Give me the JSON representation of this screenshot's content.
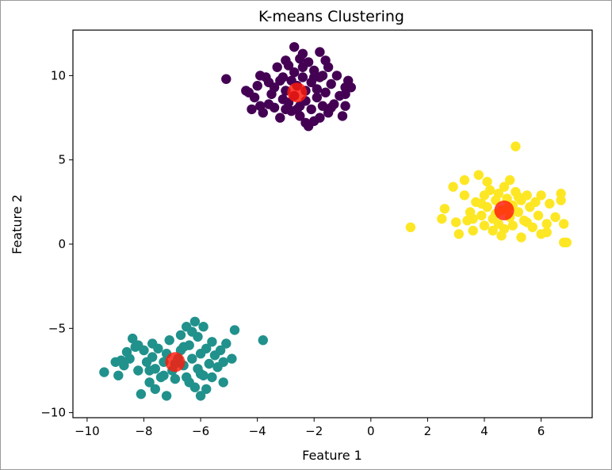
{
  "chart_data": {
    "type": "scatter",
    "title": "K-means Clustering",
    "xlabel": "Feature 1",
    "ylabel": "Feature 2",
    "xlim": [
      -10.5,
      7.8
    ],
    "ylim": [
      -10.3,
      12.7
    ],
    "xticks": [
      -10,
      -8,
      -6,
      -4,
      -2,
      0,
      2,
      4,
      6
    ],
    "yticks": [
      -10,
      -5,
      0,
      5,
      10
    ],
    "grid": false,
    "legend": "none",
    "colors": {
      "cluster_0": "#440154",
      "cluster_1": "#21918c",
      "cluster_2": "#fde725",
      "centroid": "#ff1a0a"
    },
    "series": [
      {
        "cluster": "cluster_0",
        "points": [
          [
            -5.1,
            9.8
          ],
          [
            -4.3,
            9.0
          ],
          [
            -4.1,
            8.7
          ],
          [
            -4.0,
            9.4
          ],
          [
            -3.9,
            8.2
          ],
          [
            -3.8,
            7.8
          ],
          [
            -3.6,
            9.6
          ],
          [
            -3.5,
            8.9
          ],
          [
            -3.4,
            9.3
          ],
          [
            -3.4,
            8.1
          ],
          [
            -3.3,
            10.5
          ],
          [
            -3.2,
            7.5
          ],
          [
            -3.1,
            9.9
          ],
          [
            -3.1,
            8.6
          ],
          [
            -3.0,
            10.9
          ],
          [
            -3.0,
            9.1
          ],
          [
            -2.9,
            8.4
          ],
          [
            -2.8,
            9.7
          ],
          [
            -2.8,
            7.9
          ],
          [
            -2.7,
            11.7
          ],
          [
            -2.7,
            10.2
          ],
          [
            -2.7,
            8.8
          ],
          [
            -2.6,
            9.4
          ],
          [
            -2.5,
            8.2
          ],
          [
            -2.5,
            7.6
          ],
          [
            -2.4,
            11.3
          ],
          [
            -2.4,
            10.5
          ],
          [
            -2.4,
            9.9
          ],
          [
            -2.3,
            9.1
          ],
          [
            -2.3,
            8.5
          ],
          [
            -2.2,
            10.8
          ],
          [
            -2.2,
            7.0
          ],
          [
            -2.1,
            9.6
          ],
          [
            -2.1,
            8.0
          ],
          [
            -2.0,
            7.3
          ],
          [
            -2.0,
            10.3
          ],
          [
            -1.9,
            9.2
          ],
          [
            -1.9,
            8.7
          ],
          [
            -1.8,
            11.4
          ],
          [
            -1.8,
            7.5
          ],
          [
            -1.7,
            10.0
          ],
          [
            -1.7,
            8.2
          ],
          [
            -1.6,
            10.9
          ],
          [
            -1.6,
            9.0
          ],
          [
            -1.5,
            7.8
          ],
          [
            -1.5,
            10.5
          ],
          [
            -1.4,
            9.5
          ],
          [
            -1.3,
            8.3
          ],
          [
            -1.2,
            10.0
          ],
          [
            -1.1,
            8.8
          ],
          [
            -1.0,
            7.6
          ],
          [
            -0.9,
            8.9
          ],
          [
            -0.8,
            9.7
          ],
          [
            -0.7,
            9.3
          ],
          [
            -0.9,
            8.2
          ],
          [
            -3.6,
            8.3
          ],
          [
            -3.0,
            8.0
          ],
          [
            -2.0,
            9.9
          ],
          [
            -4.4,
            9.1
          ],
          [
            -3.7,
            9.9
          ],
          [
            -3.2,
            9.7
          ],
          [
            -2.9,
            10.6
          ],
          [
            -2.6,
            8.0
          ],
          [
            -1.8,
            9.9
          ],
          [
            -2.3,
            7.2
          ],
          [
            -3.9,
            10.0
          ],
          [
            -1.4,
            8.1
          ],
          [
            -0.9,
            9.3
          ],
          [
            -4.2,
            8.0
          ],
          [
            -2.5,
            11.0
          ]
        ]
      },
      {
        "cluster": "cluster_1",
        "points": [
          [
            -9.4,
            -7.6
          ],
          [
            -9.0,
            -7.0
          ],
          [
            -8.9,
            -7.8
          ],
          [
            -8.7,
            -7.2
          ],
          [
            -8.6,
            -6.4
          ],
          [
            -8.5,
            -6.8
          ],
          [
            -8.4,
            -5.6
          ],
          [
            -8.3,
            -6.1
          ],
          [
            -8.2,
            -7.5
          ],
          [
            -8.1,
            -8.9
          ],
          [
            -8.0,
            -6.3
          ],
          [
            -7.9,
            -7.0
          ],
          [
            -7.8,
            -8.2
          ],
          [
            -7.7,
            -5.9
          ],
          [
            -7.7,
            -6.7
          ],
          [
            -7.6,
            -7.4
          ],
          [
            -7.6,
            -8.6
          ],
          [
            -7.5,
            -6.2
          ],
          [
            -7.4,
            -7.9
          ],
          [
            -7.3,
            -7.0
          ],
          [
            -7.2,
            -9.0
          ],
          [
            -7.2,
            -6.5
          ],
          [
            -7.1,
            -5.7
          ],
          [
            -7.0,
            -7.5
          ],
          [
            -6.9,
            -8.0
          ],
          [
            -6.8,
            -6.8
          ],
          [
            -6.7,
            -5.4
          ],
          [
            -6.7,
            -6.3
          ],
          [
            -6.6,
            -7.2
          ],
          [
            -6.5,
            -4.9
          ],
          [
            -6.5,
            -7.9
          ],
          [
            -6.4,
            -6.0
          ],
          [
            -6.3,
            -5.2
          ],
          [
            -6.3,
            -6.8
          ],
          [
            -6.2,
            -4.6
          ],
          [
            -6.2,
            -8.5
          ],
          [
            -6.1,
            -7.4
          ],
          [
            -6.1,
            -5.5
          ],
          [
            -6.0,
            -6.5
          ],
          [
            -6.0,
            -9.0
          ],
          [
            -5.9,
            -7.8
          ],
          [
            -5.9,
            -4.9
          ],
          [
            -5.8,
            -6.2
          ],
          [
            -5.8,
            -8.6
          ],
          [
            -5.7,
            -7.1
          ],
          [
            -5.6,
            -5.8
          ],
          [
            -5.5,
            -6.6
          ],
          [
            -5.4,
            -7.3
          ],
          [
            -5.3,
            -6.3
          ],
          [
            -5.2,
            -8.2
          ],
          [
            -5.2,
            -7.0
          ],
          [
            -5.1,
            -5.9
          ],
          [
            -4.9,
            -6.8
          ],
          [
            -4.8,
            -5.1
          ],
          [
            -3.8,
            -5.7
          ],
          [
            -8.8,
            -6.9
          ],
          [
            -8.2,
            -6.0
          ],
          [
            -7.3,
            -7.8
          ],
          [
            -6.6,
            -6.1
          ],
          [
            -6.9,
            -7.1
          ],
          [
            -6.0,
            -7.7
          ],
          [
            -5.6,
            -7.9
          ],
          [
            -7.8,
            -7.5
          ],
          [
            -6.4,
            -8.2
          ]
        ]
      },
      {
        "cluster": "cluster_2",
        "points": [
          [
            1.4,
            1.0
          ],
          [
            2.5,
            1.5
          ],
          [
            2.6,
            2.1
          ],
          [
            2.9,
            3.4
          ],
          [
            3.0,
            1.3
          ],
          [
            3.1,
            0.6
          ],
          [
            3.3,
            2.9
          ],
          [
            3.3,
            3.8
          ],
          [
            3.4,
            1.4
          ],
          [
            3.5,
            1.9
          ],
          [
            3.6,
            0.8
          ],
          [
            3.7,
            2.5
          ],
          [
            3.8,
            4.1
          ],
          [
            3.9,
            1.7
          ],
          [
            4.0,
            2.9
          ],
          [
            4.0,
            1.1
          ],
          [
            4.1,
            2.2
          ],
          [
            4.2,
            3.2
          ],
          [
            4.3,
            1.5
          ],
          [
            4.3,
            0.8
          ],
          [
            4.4,
            2.6
          ],
          [
            4.5,
            3.0
          ],
          [
            4.5,
            1.2
          ],
          [
            4.6,
            2.0
          ],
          [
            4.7,
            3.4
          ],
          [
            4.7,
            0.9
          ],
          [
            4.8,
            2.7
          ],
          [
            4.9,
            1.6
          ],
          [
            4.9,
            3.8
          ],
          [
            5.0,
            2.3
          ],
          [
            5.0,
            1.1
          ],
          [
            5.1,
            5.8
          ],
          [
            5.1,
            3.1
          ],
          [
            5.2,
            1.9
          ],
          [
            5.3,
            0.4
          ],
          [
            5.3,
            2.6
          ],
          [
            5.4,
            1.4
          ],
          [
            5.5,
            2.9
          ],
          [
            5.6,
            2.2
          ],
          [
            5.7,
            1.0
          ],
          [
            5.8,
            2.5
          ],
          [
            5.9,
            1.7
          ],
          [
            6.0,
            2.9
          ],
          [
            6.0,
            0.6
          ],
          [
            6.2,
            1.2
          ],
          [
            6.2,
            0.7
          ],
          [
            6.3,
            2.4
          ],
          [
            6.5,
            1.6
          ],
          [
            6.7,
            3.0
          ],
          [
            6.7,
            2.6
          ],
          [
            6.8,
            1.2
          ],
          [
            6.8,
            0.1
          ],
          [
            6.9,
            0.1
          ],
          [
            4.4,
            1.8
          ],
          [
            4.8,
            2.1
          ],
          [
            3.9,
            2.4
          ],
          [
            5.2,
            2.8
          ],
          [
            4.1,
            3.7
          ],
          [
            3.6,
            1.5
          ],
          [
            5.5,
            1.3
          ],
          [
            4.6,
            0.5
          ]
        ]
      }
    ],
    "centroids": [
      {
        "cluster": "cluster_0",
        "x": -2.6,
        "y": 9.0
      },
      {
        "cluster": "cluster_1",
        "x": -6.9,
        "y": -7.0
      },
      {
        "cluster": "cluster_2",
        "x": 4.7,
        "y": 2.0
      }
    ]
  }
}
